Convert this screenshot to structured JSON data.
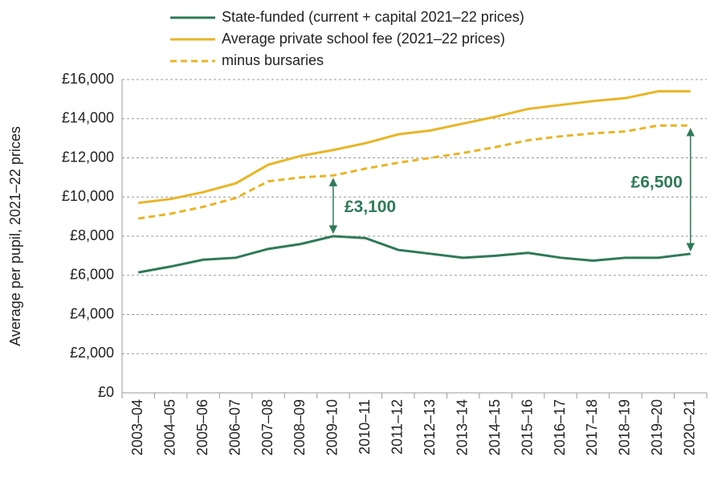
{
  "chart_data": {
    "type": "line",
    "y_label": "Average per pupil, 2021–22 prices",
    "categories": [
      "2003–04",
      "2004–05",
      "2005–06",
      "2006–07",
      "2007–08",
      "2008–09",
      "2009–10",
      "2010–11",
      "2011–12",
      "2012–13",
      "2013–14",
      "2014–15",
      "2015–16",
      "2016–17",
      "2017–18",
      "2018–19",
      "2019–20",
      "2020–21"
    ],
    "series": [
      {
        "name": "State-funded (current + capital 2021–22 prices)",
        "color": "#2e7a57",
        "dashed": false,
        "values": [
          6150,
          6450,
          6800,
          6900,
          7350,
          7600,
          8000,
          7900,
          7300,
          7100,
          6900,
          7000,
          7150,
          6900,
          6750,
          6900,
          6900,
          7100
        ]
      },
      {
        "name": "Average private school fee (2021–22 prices)",
        "color": "#e9b526",
        "dashed": false,
        "values": [
          9700,
          9900,
          10250,
          10700,
          11650,
          12100,
          12400,
          12750,
          13200,
          13400,
          13750,
          14100,
          14500,
          14700,
          14900,
          15050,
          15400,
          15400
        ]
      },
      {
        "name": "minus bursaries",
        "color": "#e9b526",
        "dashed": true,
        "values": [
          8900,
          9150,
          9500,
          9950,
          10800,
          11000,
          11100,
          11450,
          11750,
          12000,
          12250,
          12550,
          12900,
          13100,
          13250,
          13350,
          13650,
          13650
        ]
      }
    ],
    "ylim": [
      0,
      16000
    ],
    "yticks": [
      {
        "value": 0,
        "label": "£0"
      },
      {
        "value": 2000,
        "label": "£2,000"
      },
      {
        "value": 4000,
        "label": "£4,000"
      },
      {
        "value": 6000,
        "label": "£6,000"
      },
      {
        "value": 8000,
        "label": "£8,000"
      },
      {
        "value": 10000,
        "label": "£10,000"
      },
      {
        "value": 12000,
        "label": "£12,000"
      },
      {
        "value": 14000,
        "label": "£14,000"
      },
      {
        "value": 16000,
        "label": "£16,000"
      }
    ],
    "grid": true,
    "annotations": [
      {
        "label": "£3,100",
        "at": "2009–10"
      },
      {
        "label": "£6,500",
        "at": "2020–21"
      }
    ]
  }
}
